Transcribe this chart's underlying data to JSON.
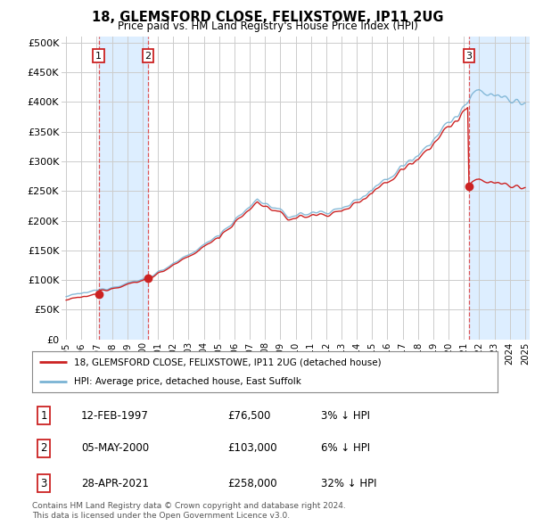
{
  "title": "18, GLEMSFORD CLOSE, FELIXSTOWE, IP11 2UG",
  "subtitle": "Price paid vs. HM Land Registry's House Price Index (HPI)",
  "ylabel_ticks": [
    "£0",
    "£50K",
    "£100K",
    "£150K",
    "£200K",
    "£250K",
    "£300K",
    "£350K",
    "£400K",
    "£450K",
    "£500K"
  ],
  "ytick_values": [
    0,
    50000,
    100000,
    150000,
    200000,
    250000,
    300000,
    350000,
    400000,
    450000,
    500000
  ],
  "ylim": [
    0,
    510000
  ],
  "xlim_start": 1994.7,
  "xlim_end": 2025.3,
  "background_color": "#ffffff",
  "plot_bg_color": "#ffffff",
  "grid_color": "#cccccc",
  "shade_color": "#ddeeff",
  "hpi_line_color": "#7ab3d4",
  "price_line_color": "#cc2222",
  "marker_color": "#cc2222",
  "dashed_line_color": "#dd4444",
  "transactions": [
    {
      "date_decimal": 1997.12,
      "price": 76500,
      "label": "1"
    },
    {
      "date_decimal": 2000.35,
      "price": 103000,
      "label": "2"
    },
    {
      "date_decimal": 2021.33,
      "price": 258000,
      "label": "3"
    }
  ],
  "legend_line1": "18, GLEMSFORD CLOSE, FELIXSTOWE, IP11 2UG (detached house)",
  "legend_line2": "HPI: Average price, detached house, East Suffolk",
  "table_rows": [
    {
      "num": "1",
      "date": "12-FEB-1997",
      "price": "£76,500",
      "hpi": "3% ↓ HPI"
    },
    {
      "num": "2",
      "date": "05-MAY-2000",
      "price": "£103,000",
      "hpi": "6% ↓ HPI"
    },
    {
      "num": "3",
      "date": "28-APR-2021",
      "price": "£258,000",
      "hpi": "32% ↓ HPI"
    }
  ],
  "footer": "Contains HM Land Registry data © Crown copyright and database right 2024.\nThis data is licensed under the Open Government Licence v3.0.",
  "xtick_years": [
    1995,
    1996,
    1997,
    1998,
    1999,
    2000,
    2001,
    2002,
    2003,
    2004,
    2005,
    2006,
    2007,
    2008,
    2009,
    2010,
    2011,
    2012,
    2013,
    2014,
    2015,
    2016,
    2017,
    2018,
    2019,
    2020,
    2021,
    2022,
    2023,
    2024,
    2025
  ]
}
